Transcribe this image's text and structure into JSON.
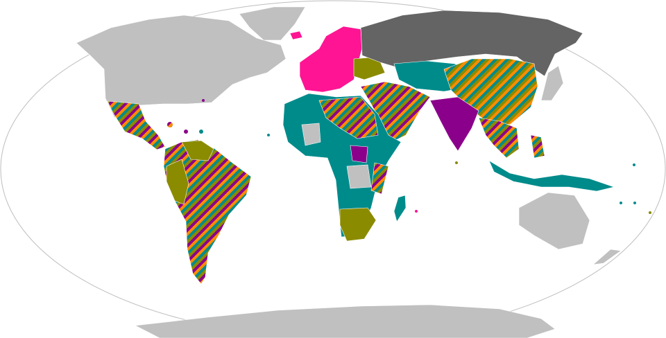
{
  "map": {
    "projection": "robinson",
    "colors": {
      "ocean": "#ffffff",
      "outline": "#bdbdbd",
      "no_data": "#c0c0c0",
      "dark_gray": "#646464",
      "pink": "#ff1493",
      "teal": "#008b8b",
      "olive": "#8b8b00",
      "purple": "#8b008b",
      "orange": "#ff8c00"
    },
    "striped_pattern_colors": [
      "#008b8b",
      "#8b8b00",
      "#8b008b",
      "#ff8c00"
    ]
  }
}
